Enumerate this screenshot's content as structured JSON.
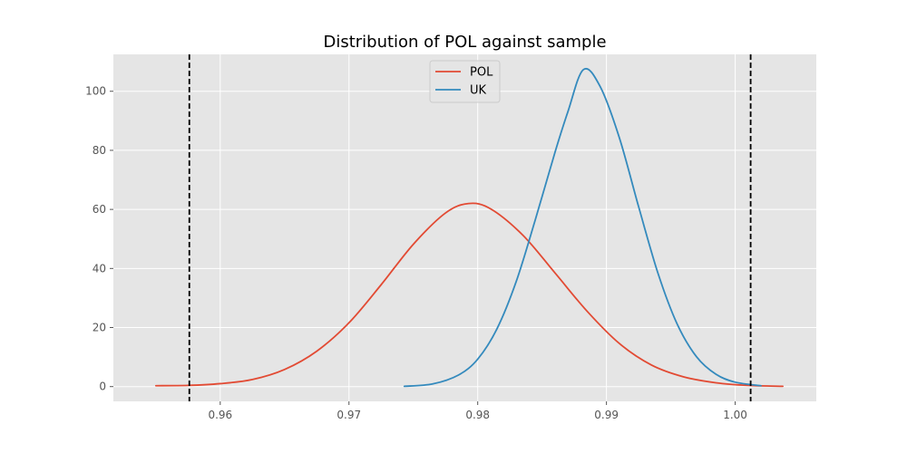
{
  "chart_data": {
    "type": "line",
    "title": "Distribution of POL against sample",
    "xlabel": "",
    "ylabel": "",
    "xlim": [
      0.9517,
      1.0063
    ],
    "ylim": [
      -5,
      112.5
    ],
    "x_ticks": [
      0.96,
      0.97,
      0.98,
      0.99,
      1.0
    ],
    "x_tick_labels": [
      "0.96",
      "0.97",
      "0.98",
      "0.99",
      "1.00"
    ],
    "y_ticks": [
      0,
      20,
      40,
      60,
      80,
      100
    ],
    "y_tick_labels": [
      "0",
      "20",
      "40",
      "60",
      "80",
      "100"
    ],
    "grid": true,
    "legend_position": "top-center",
    "series": [
      {
        "name": "POL",
        "color": "#E24A33",
        "x": [
          0.955,
          0.9575,
          0.96,
          0.9625,
          0.965,
          0.9675,
          0.97,
          0.9725,
          0.975,
          0.9775,
          0.9793,
          0.981,
          0.9835,
          0.986,
          0.9885,
          0.991,
          0.9935,
          0.996,
          0.9985,
          1.001,
          1.0037
        ],
        "y": [
          0.3,
          0.4,
          1.0,
          2.4,
          5.8,
          12.0,
          21.6,
          34.5,
          48.2,
          58.8,
          62.0,
          60.2,
          51.3,
          38.5,
          25.5,
          14.6,
          7.3,
          3.3,
          1.3,
          0.4,
          0.1
        ]
      },
      {
        "name": "UK",
        "color": "#348ABD",
        "x": [
          0.9743,
          0.9765,
          0.9785,
          0.98,
          0.9815,
          0.983,
          0.9845,
          0.986,
          0.987,
          0.9882,
          0.9895,
          0.991,
          0.9925,
          0.994,
          0.9955,
          0.997,
          0.9985,
          1.0,
          1.002
        ],
        "y": [
          0.1,
          0.9,
          3.9,
          9.3,
          19.6,
          35.7,
          56.9,
          79.3,
          93.0,
          107.3,
          101.7,
          84.3,
          60.9,
          38.4,
          21.1,
          10.1,
          4.2,
          1.5,
          0.3
        ]
      }
    ],
    "vlines": [
      {
        "x": 0.9576,
        "color": "#000000",
        "style": "dashed"
      },
      {
        "x": 1.0012,
        "color": "#000000",
        "style": "dashed"
      }
    ],
    "colors": {
      "plot_background": "#E5E5E5",
      "grid": "#FFFFFF",
      "tick_label": "#555555",
      "title": "#000000"
    }
  }
}
